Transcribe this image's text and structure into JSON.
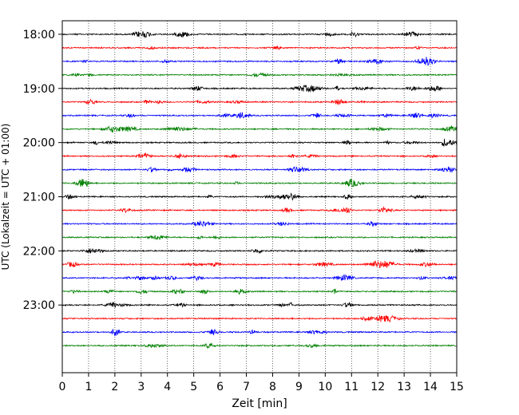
{
  "chart_data": {
    "type": "line",
    "title": "",
    "xlabel": "Zeit  [min]",
    "ylabel": "UTC (Lokalzeit = UTC + 01:00)",
    "xlim": [
      0,
      15
    ],
    "ylim": [
      "17:45",
      "24:15"
    ],
    "x_ticks": [
      "0",
      "1",
      "2",
      "3",
      "4",
      "5",
      "6",
      "7",
      "8",
      "9",
      "10",
      "11",
      "12",
      "13",
      "14",
      "15"
    ],
    "y_ticks": [
      "18:00",
      "19:00",
      "20:00",
      "21:00",
      "22:00",
      "23:00"
    ],
    "grid": "vertical dotted",
    "legend": "none",
    "trace_interval_minutes": 15,
    "color_cycle": [
      "#000000",
      "#ff0000",
      "#0000ff",
      "#008000"
    ],
    "traces": [
      {
        "start": "18:00",
        "color": "#000000"
      },
      {
        "start": "18:15",
        "color": "#ff0000"
      },
      {
        "start": "18:30",
        "color": "#0000ff"
      },
      {
        "start": "18:45",
        "color": "#008000"
      },
      {
        "start": "19:00",
        "color": "#000000"
      },
      {
        "start": "19:15",
        "color": "#ff0000"
      },
      {
        "start": "19:30",
        "color": "#0000ff"
      },
      {
        "start": "19:45",
        "color": "#008000"
      },
      {
        "start": "20:00",
        "color": "#000000"
      },
      {
        "start": "20:15",
        "color": "#ff0000"
      },
      {
        "start": "20:30",
        "color": "#0000ff"
      },
      {
        "start": "20:45",
        "color": "#008000"
      },
      {
        "start": "21:00",
        "color": "#000000"
      },
      {
        "start": "21:15",
        "color": "#ff0000"
      },
      {
        "start": "21:30",
        "color": "#0000ff"
      },
      {
        "start": "21:45",
        "color": "#008000"
      },
      {
        "start": "22:00",
        "color": "#000000"
      },
      {
        "start": "22:15",
        "color": "#ff0000"
      },
      {
        "start": "22:30",
        "color": "#0000ff"
      },
      {
        "start": "22:45",
        "color": "#008000"
      },
      {
        "start": "23:00",
        "color": "#000000"
      },
      {
        "start": "23:15",
        "color": "#ff0000"
      },
      {
        "start": "23:30",
        "color": "#0000ff"
      },
      {
        "start": "23:45",
        "color": "#008000"
      }
    ]
  }
}
